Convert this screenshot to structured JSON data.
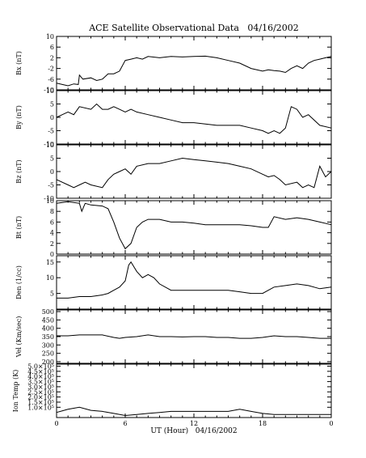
{
  "chart_data": {
    "type": "line",
    "title": "ACE Satellite Observational Data   04/16/2002",
    "xlabel": "UT (Hour)   04/16/2002",
    "xlim": [
      0,
      24
    ],
    "x_tick_labels": [
      "0",
      "6",
      "12",
      "18",
      "0"
    ],
    "panels": [
      {
        "ylabel": "Bx (nT)",
        "ylim": [
          -10,
          10
        ],
        "tick_labels": [
          "-10",
          "-6",
          "-2",
          "2",
          "6",
          "10"
        ],
        "x": [
          0,
          0.5,
          1,
          1.5,
          1.9,
          2,
          2.3,
          3,
          3.5,
          4,
          4.5,
          5,
          5.5,
          6,
          6.5,
          7,
          7.5,
          8,
          9,
          10,
          11,
          12,
          13,
          14,
          15,
          16,
          17,
          18,
          18.5,
          19,
          19.5,
          20,
          20.5,
          21,
          21.5,
          22,
          22.5,
          23,
          23.5,
          24
        ],
        "values": [
          -7.5,
          -8,
          -8.5,
          -7.8,
          -8,
          -4.5,
          -6,
          -5.5,
          -6.5,
          -6,
          -4,
          -4,
          -3,
          1,
          1.5,
          2,
          1.5,
          2.5,
          2,
          2.5,
          2.3,
          2.5,
          2.6,
          2,
          1,
          0,
          -2,
          -3,
          -2.5,
          -2.8,
          -3,
          -3.5,
          -2,
          -1,
          -2,
          0,
          1,
          1.5,
          2,
          2.5
        ]
      },
      {
        "ylabel": "By (nT)",
        "ylim": [
          -10,
          10
        ],
        "tick_labels": [
          "-10",
          "-5",
          "0",
          "5",
          "10"
        ],
        "x": [
          0,
          0.5,
          1,
          1.5,
          2,
          3,
          3.5,
          4,
          4.5,
          5,
          5.5,
          6,
          6.5,
          7,
          8,
          9,
          10,
          11,
          12,
          13,
          14,
          15,
          16,
          17,
          18,
          18.5,
          19,
          19.5,
          20,
          20.5,
          21,
          21.5,
          22,
          23,
          24
        ],
        "values": [
          0,
          1,
          2,
          1,
          4,
          3,
          5,
          3,
          3,
          4,
          3,
          2,
          3,
          2,
          1,
          0,
          -1,
          -2,
          -2,
          -2.5,
          -3,
          -3,
          -3,
          -4,
          -5,
          -6,
          -5,
          -6,
          -4,
          4,
          3,
          0,
          1,
          -3,
          -4
        ]
      },
      {
        "ylabel": "Bz (nT)",
        "ylim": [
          -10,
          10
        ],
        "tick_labels": [
          "-10",
          "-5",
          "0",
          "5",
          "10"
        ],
        "x": [
          0,
          1,
          1.5,
          2,
          2.5,
          3,
          4,
          4.5,
          5,
          5.5,
          6,
          6.5,
          7,
          8,
          9,
          10,
          11,
          12,
          13,
          14,
          15,
          16,
          17,
          18,
          18.5,
          19,
          19.5,
          20,
          21,
          21.5,
          22,
          22.5,
          23,
          23.5,
          24
        ],
        "values": [
          -3,
          -5,
          -6,
          -5,
          -4,
          -5,
          -6,
          -3,
          -1,
          0,
          1,
          -1,
          2,
          3,
          3,
          4,
          5,
          4.5,
          4,
          3.5,
          3,
          2,
          1,
          -1,
          -2,
          -1.5,
          -3,
          -5,
          -4,
          -6,
          -5,
          -6,
          2,
          -2,
          0
        ]
      },
      {
        "ylabel": "Bt (nT)",
        "ylim": [
          0,
          10
        ],
        "tick_labels": [
          "0",
          "2",
          "4",
          "6",
          "8",
          "10"
        ],
        "x": [
          0,
          1,
          2,
          2.2,
          2.5,
          3,
          4,
          4.5,
          5,
          5.5,
          6,
          6.5,
          7,
          7.5,
          8,
          9,
          10,
          11,
          12,
          13,
          14,
          15,
          16,
          17,
          18,
          18.5,
          19,
          20,
          21,
          22,
          23,
          24
        ],
        "values": [
          9.5,
          9.8,
          9.5,
          8,
          9.5,
          9.2,
          9,
          8.5,
          6,
          3,
          1,
          2,
          5,
          6,
          6.5,
          6.5,
          6,
          6,
          5.8,
          5.5,
          5.5,
          5.5,
          5.5,
          5.3,
          5,
          5,
          7,
          6.5,
          6.8,
          6.5,
          6,
          5.5
        ]
      },
      {
        "ylabel": "Den (1/cc)",
        "ylim": [
          0,
          17
        ],
        "tick_labels": [
          "5",
          "10",
          "15"
        ],
        "x": [
          0,
          1,
          2,
          3,
          4,
          4.5,
          5,
          5.5,
          6,
          6.3,
          6.5,
          7,
          7.5,
          8,
          8.5,
          9,
          10,
          11,
          12,
          13,
          14,
          15,
          16,
          17,
          18,
          18.5,
          19,
          20,
          21,
          22,
          23,
          24
        ],
        "values": [
          3.5,
          3.5,
          4,
          4,
          4.5,
          5,
          6,
          7,
          9,
          14,
          15,
          12,
          10,
          11,
          10,
          8,
          6,
          6,
          6,
          6,
          6,
          6,
          5.5,
          5,
          5,
          6,
          7,
          7.5,
          8,
          7.5,
          6.5,
          7
        ]
      },
      {
        "ylabel": "Vel (Km/sec)",
        "ylim": [
          190,
          510
        ],
        "tick_labels": [
          "200",
          "250",
          "300",
          "350",
          "400",
          "450",
          "500"
        ],
        "x": [
          0,
          1,
          2,
          3,
          4,
          5,
          5.5,
          6,
          7,
          8,
          9,
          10,
          11,
          12,
          13,
          14,
          15,
          16,
          17,
          18,
          19,
          20,
          21,
          22,
          23,
          24
        ],
        "values": [
          355,
          355,
          360,
          360,
          360,
          345,
          340,
          345,
          350,
          360,
          350,
          350,
          348,
          350,
          350,
          345,
          345,
          340,
          340,
          345,
          355,
          350,
          350,
          345,
          340,
          340
        ]
      },
      {
        "ylabel": "Ion Temp (K)",
        "ylim": [
          0,
          520000
        ],
        "tick_labels": [
          "1.0×10⁵",
          "1.5×10⁵",
          "2.0×10⁵",
          "2.5×10⁵",
          "3.0×10⁵",
          "3.5×10⁵",
          "4.0×10⁵",
          "4.5×10⁵",
          "5.0×10⁵"
        ],
        "x": [
          0,
          1,
          2,
          3,
          4,
          5,
          6,
          7,
          8,
          9,
          10,
          11,
          12,
          13,
          14,
          15,
          16,
          17,
          18,
          19,
          20,
          21,
          22,
          23,
          24
        ],
        "values": [
          50000,
          80000,
          100000,
          70000,
          60000,
          40000,
          20000,
          30000,
          40000,
          50000,
          60000,
          60000,
          60000,
          60000,
          60000,
          60000,
          80000,
          60000,
          40000,
          30000,
          30000,
          30000,
          30000,
          30000,
          30000
        ]
      }
    ]
  }
}
